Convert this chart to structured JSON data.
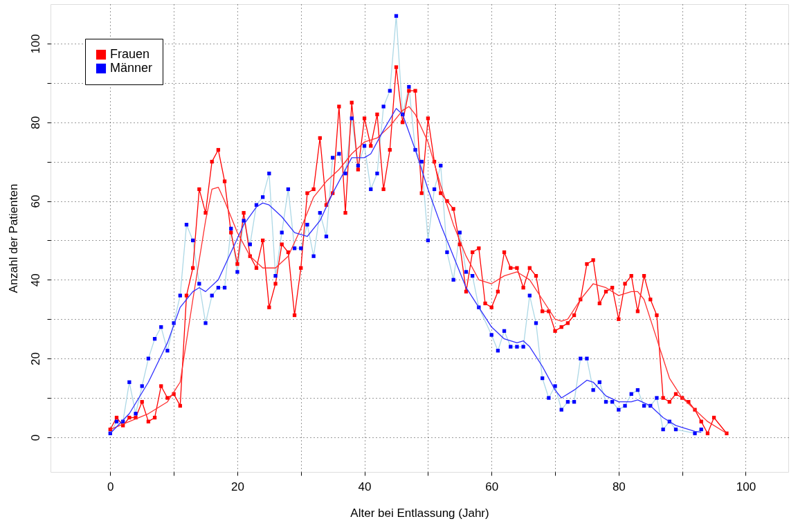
{
  "chart_data": {
    "type": "line",
    "xlabel": "Alter bei Entlassung (Jahr)",
    "ylabel": "Anzahl der Patienten",
    "xlim": [
      -9.4,
      106.7
    ],
    "ylim": [
      -8.8,
      110
    ],
    "xticks": [
      0,
      {
        "value": 10,
        "label": null
      },
      20,
      {
        "value": 30,
        "label": null
      },
      40,
      {
        "value": 50,
        "label": null
      },
      60,
      {
        "value": 70,
        "label": null
      },
      80,
      {
        "value": 90,
        "label": null
      },
      100
    ],
    "yticks": [
      0,
      {
        "value": 10,
        "label": null
      },
      20,
      {
        "value": 30,
        "label": null
      },
      40,
      {
        "value": 50,
        "label": null
      },
      60,
      {
        "value": 70,
        "label": null
      },
      80,
      {
        "value": 90,
        "label": null
      },
      100
    ],
    "grid": true,
    "legend": "top left",
    "line_style": "solid",
    "series": [
      {
        "marker": "none",
        "color": "#add8e6",
        "x": [
          0,
          1,
          2,
          3,
          4,
          5,
          6,
          7,
          8,
          9,
          10,
          11,
          12,
          13,
          14,
          15,
          16,
          17,
          18,
          19,
          20,
          21,
          22,
          23,
          24,
          25,
          26,
          27,
          28,
          29,
          30,
          31,
          32,
          33,
          34,
          35,
          36,
          37,
          38,
          39,
          40,
          41,
          42,
          43,
          44,
          45,
          46,
          47,
          48,
          49,
          50,
          51,
          52,
          53,
          54,
          55,
          56,
          57,
          58,
          60,
          61,
          62,
          63,
          64,
          65,
          66,
          67,
          68,
          69,
          70,
          71,
          72,
          73,
          74,
          75,
          76,
          77,
          78,
          79,
          80,
          81,
          82,
          83,
          84,
          85,
          86,
          87,
          88,
          89,
          92,
          93
        ],
        "values": [
          1,
          4,
          4,
          14,
          6,
          13,
          20,
          25,
          28,
          22,
          29,
          36,
          54,
          50,
          39,
          29,
          36,
          38,
          38,
          53,
          42,
          55,
          49,
          59,
          61,
          67,
          41,
          52,
          63,
          48,
          48,
          54,
          46,
          57,
          51,
          71,
          72,
          67,
          81,
          69,
          74,
          63,
          67,
          84,
          88,
          107,
          82,
          89,
          73,
          70,
          50,
          63,
          69,
          47,
          40,
          52,
          42,
          41,
          33,
          26,
          22,
          27,
          23,
          23,
          23,
          36,
          29,
          15,
          10,
          13,
          7,
          9,
          9,
          20,
          20,
          12,
          14,
          9,
          9,
          7,
          8,
          11,
          12,
          8,
          8,
          10,
          2,
          4,
          2,
          1,
          2
        ]
      },
      {
        "name": "Frauen",
        "marker": "square",
        "color": "#ff0000",
        "x": [
          0,
          1,
          2,
          3,
          4,
          5,
          6,
          7,
          8,
          9,
          10,
          11,
          12,
          13,
          14,
          15,
          16,
          17,
          18,
          19,
          20,
          21,
          22,
          23,
          24,
          25,
          26,
          27,
          28,
          29,
          30,
          31,
          32,
          33,
          34,
          35,
          36,
          37,
          38,
          39,
          40,
          41,
          42,
          43,
          44,
          45,
          46,
          47,
          48,
          49,
          50,
          51,
          52,
          53,
          54,
          55,
          56,
          57,
          58,
          59,
          60,
          61,
          62,
          63,
          64,
          65,
          66,
          67,
          68,
          69,
          70,
          71,
          72,
          73,
          74,
          75,
          76,
          77,
          78,
          79,
          80,
          81,
          82,
          83,
          84,
          85,
          86,
          87,
          88,
          89,
          90,
          91,
          92,
          93,
          94,
          95,
          97
        ],
        "values": [
          2,
          5,
          3,
          5,
          5,
          9,
          4,
          5,
          13,
          10,
          11,
          8,
          36,
          43,
          63,
          57,
          70,
          73,
          65,
          52,
          44,
          57,
          46,
          43,
          50,
          33,
          39,
          49,
          47,
          31,
          43,
          62,
          63,
          76,
          59,
          62,
          84,
          57,
          85,
          68,
          81,
          74,
          82,
          63,
          73,
          94,
          80,
          88,
          88,
          62,
          81,
          70,
          62,
          60,
          58,
          49,
          37,
          47,
          48,
          34,
          33,
          37,
          47,
          43,
          43,
          38,
          43,
          41,
          32,
          32,
          27,
          28,
          29,
          31,
          35,
          44,
          45,
          34,
          37,
          38,
          30,
          39,
          41,
          32,
          41,
          35,
          31,
          10,
          9,
          11,
          10,
          9,
          7,
          4,
          1,
          5,
          1
        ]
      },
      {
        "name": "Männer",
        "type": "scatter",
        "marker": "square",
        "color": "#0000ff",
        "x": [
          0,
          1,
          2,
          3,
          4,
          5,
          6,
          7,
          8,
          9,
          10,
          11,
          12,
          13,
          14,
          15,
          16,
          17,
          18,
          19,
          20,
          21,
          22,
          23,
          24,
          25,
          26,
          27,
          28,
          29,
          30,
          31,
          32,
          33,
          34,
          35,
          36,
          37,
          38,
          39,
          40,
          41,
          42,
          43,
          44,
          45,
          46,
          47,
          48,
          49,
          50,
          51,
          52,
          53,
          54,
          55,
          56,
          57,
          58,
          60,
          61,
          62,
          63,
          64,
          65,
          66,
          67,
          68,
          69,
          70,
          71,
          72,
          73,
          74,
          75,
          76,
          77,
          78,
          79,
          80,
          81,
          82,
          83,
          84,
          85,
          86,
          87,
          88,
          89,
          92,
          93
        ],
        "values": [
          1,
          4,
          4,
          14,
          6,
          13,
          20,
          25,
          28,
          22,
          29,
          36,
          54,
          50,
          39,
          29,
          36,
          38,
          38,
          53,
          42,
          55,
          49,
          59,
          61,
          67,
          41,
          52,
          63,
          48,
          48,
          54,
          46,
          57,
          51,
          71,
          72,
          67,
          81,
          69,
          74,
          63,
          67,
          84,
          88,
          107,
          82,
          89,
          73,
          70,
          50,
          63,
          69,
          47,
          40,
          52,
          42,
          41,
          33,
          26,
          22,
          27,
          23,
          23,
          23,
          36,
          29,
          15,
          10,
          13,
          7,
          9,
          9,
          20,
          20,
          12,
          14,
          9,
          9,
          7,
          8,
          11,
          12,
          8,
          8,
          10,
          2,
          4,
          2,
          1,
          2
        ]
      },
      {
        "marker": "none",
        "color": "#ff3030",
        "x": [
          0,
          3,
          6,
          9,
          11,
          13,
          15,
          16,
          17,
          18,
          20,
          22,
          24,
          26,
          28,
          30,
          32,
          34,
          36,
          38,
          40,
          42,
          44,
          46,
          47,
          48,
          50,
          52,
          54,
          56,
          58,
          60,
          62,
          64,
          66,
          68,
          70,
          71,
          72,
          74,
          76,
          78,
          80,
          82,
          83,
          84,
          86,
          88,
          90,
          92,
          94,
          97
        ],
        "values": [
          2,
          4,
          6,
          9,
          14,
          35,
          55,
          63,
          63.5,
          60,
          52,
          46,
          43,
          43,
          46,
          53,
          61,
          65,
          68,
          72,
          75,
          76,
          79,
          83,
          84,
          82,
          75,
          64,
          54,
          46,
          40,
          39,
          41,
          42,
          40,
          35,
          30,
          29.5,
          30,
          35,
          39,
          38,
          36,
          37,
          37,
          35,
          25,
          15,
          10,
          7,
          4,
          1
        ]
      },
      {
        "marker": "none",
        "color": "#3030ff",
        "x": [
          0,
          3,
          6,
          9,
          11,
          13,
          14,
          15,
          17,
          19,
          21,
          23,
          24,
          25,
          27,
          29,
          31,
          33,
          35,
          37,
          38,
          40,
          41,
          43,
          45,
          46,
          48,
          50,
          52,
          54,
          56,
          58,
          60,
          62,
          64,
          65,
          66,
          68,
          70,
          71,
          73,
          75,
          76,
          78,
          80,
          82,
          83,
          85,
          87,
          89,
          92,
          93
        ],
        "values": [
          1,
          6,
          14,
          24,
          33,
          37,
          38,
          37,
          40,
          47,
          54,
          58.5,
          59.5,
          59,
          56,
          52,
          51,
          55,
          62,
          68,
          71,
          71,
          72,
          78,
          83.5,
          82,
          73,
          63,
          54,
          46,
          38,
          33,
          28,
          25,
          24,
          24.5,
          23,
          18,
          12,
          10,
          12,
          14.5,
          14,
          10.5,
          9,
          9,
          9.5,
          8,
          5,
          3,
          1.5,
          1.3
        ]
      }
    ]
  }
}
